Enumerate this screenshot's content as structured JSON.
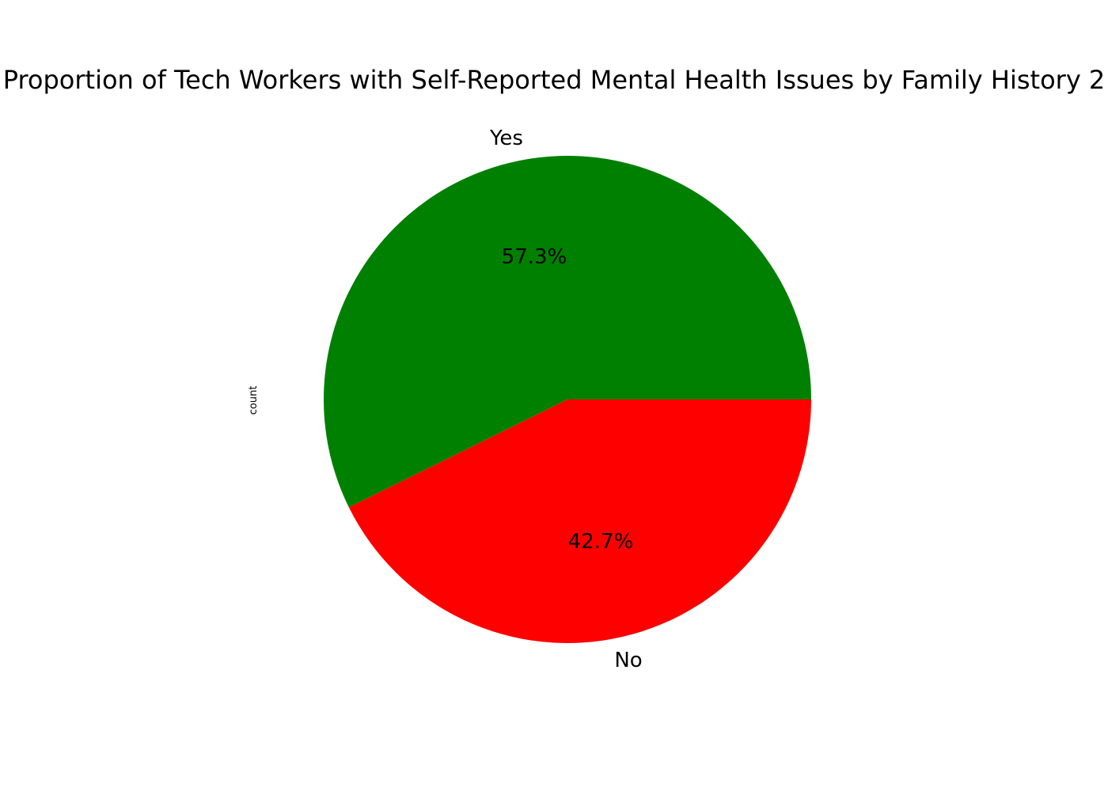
{
  "chart_data": {
    "type": "pie",
    "title": "Proportion of Tech Workers with Self-Reported Mental Health Issues by Family History 2",
    "ylabel": "count",
    "slices": [
      {
        "label": "Yes",
        "percent": 57.3,
        "percent_label": "57.3%",
        "color": "#008000"
      },
      {
        "label": "No",
        "percent": 42.7,
        "percent_label": "42.7%",
        "color": "#ff0000"
      }
    ],
    "start_angle_deg": 0,
    "direction": "counterclockwise",
    "legend": "none"
  }
}
